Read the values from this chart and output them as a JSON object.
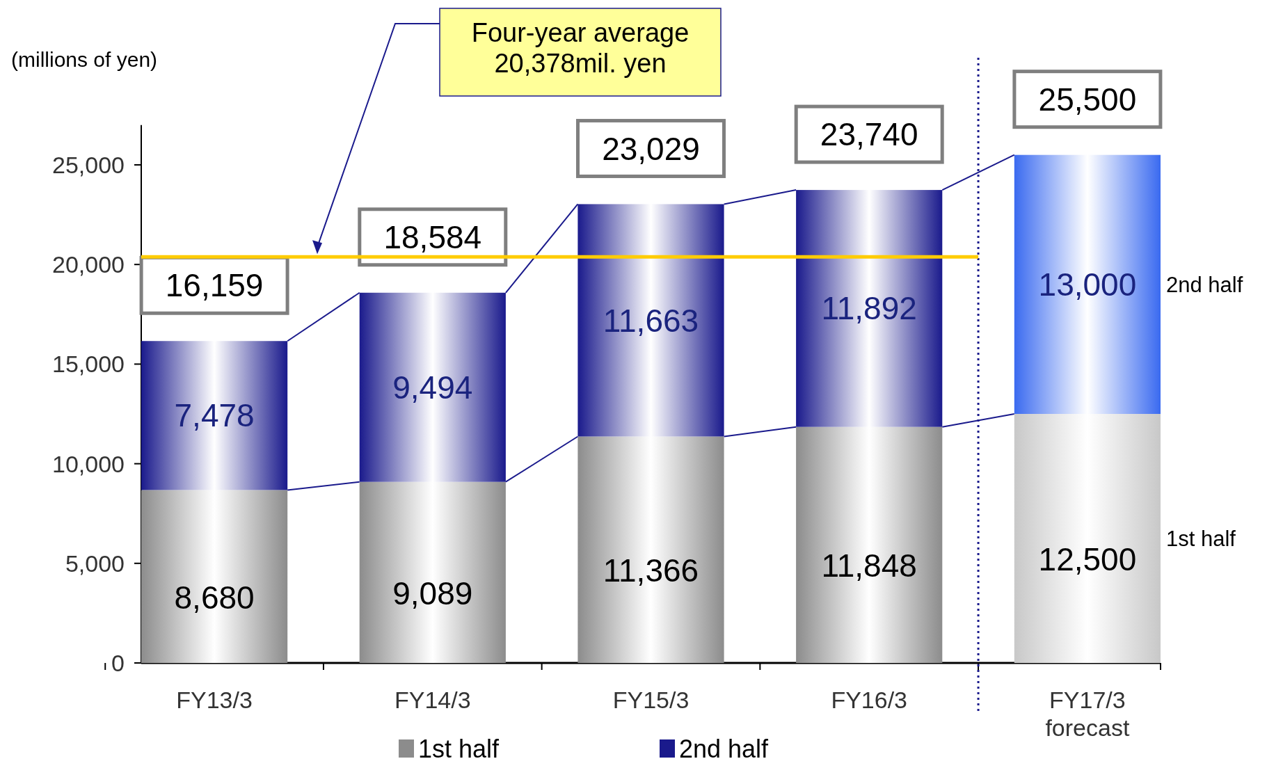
{
  "chart_data": {
    "type": "bar",
    "stacked": true,
    "ylabel": "(millions of yen)",
    "categories": [
      "FY13/3",
      "FY14/3",
      "FY15/3",
      "FY16/3",
      "FY17/3\nforecast"
    ],
    "series": [
      {
        "name": "1st half",
        "color": "#8c8c8c",
        "colors": [
          "#8c8c8c",
          "#8c8c8c",
          "#8c8c8c",
          "#8c8c8c",
          "#c8c8c8"
        ],
        "values": [
          8680,
          9089,
          11366,
          11848,
          12500
        ],
        "value_labels": [
          "8,680",
          "9,089",
          "11,366",
          "11,848",
          "12,500"
        ]
      },
      {
        "name": "2nd half",
        "color": "#1a1a8c",
        "colors": [
          "#1a1a8c",
          "#1a1a8c",
          "#1a1a8c",
          "#1a1a8c",
          "#3a6af0"
        ],
        "values": [
          7478,
          9494,
          11663,
          11892,
          13000
        ],
        "value_labels": [
          "7,478",
          "9,494",
          "11,663",
          "11,892",
          "13,000"
        ]
      }
    ],
    "totals": [
      "16,159",
      "18,584",
      "23,029",
      "23,740",
      "25,500"
    ],
    "ylim": [
      0,
      27000
    ],
    "yticks": [
      0,
      {
        "value": 5000,
        "label": "5,000"
      },
      {
        "value": 10000,
        "label": "10,000"
      },
      {
        "value": 15000,
        "label": "15,000"
      },
      {
        "value": 20000,
        "label": "20,000"
      },
      {
        "value": 25000,
        "label": "25,000"
      }
    ],
    "ref_lines": [
      {
        "axis": "y",
        "value": 20378,
        "color": "#ffcc00"
      },
      {
        "axis": "x",
        "value": "FY17/3\nforecast",
        "color": "#1a1a8c",
        "line_style": "dotted"
      }
    ],
    "annotations": [
      "Four-year average\n20,378mil. yen"
    ],
    "legend": "bottom"
  }
}
